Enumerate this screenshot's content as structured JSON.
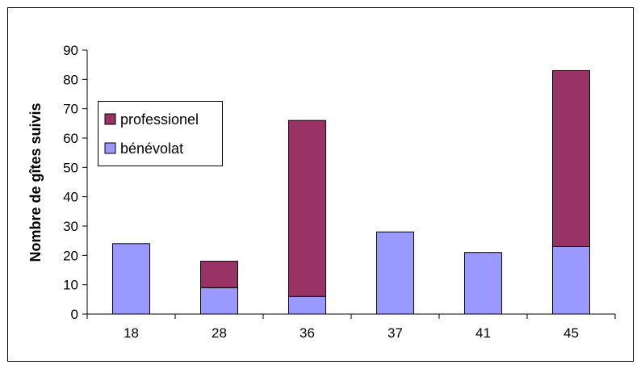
{
  "chart_data": {
    "type": "bar",
    "stacked": true,
    "categories": [
      "18",
      "28",
      "36",
      "37",
      "41",
      "45"
    ],
    "series": [
      {
        "name": "bénévolat",
        "values": [
          24,
          9,
          6,
          28,
          21,
          23
        ],
        "color": "#9999ff"
      },
      {
        "name": "professionel",
        "values": [
          0,
          9,
          60,
          0,
          0,
          60
        ],
        "color": "#993366"
      }
    ],
    "ylabel": "Nombre de gîtes suivis",
    "xlabel": "",
    "ylim": [
      0,
      90
    ],
    "yticks": [
      0,
      10,
      20,
      30,
      40,
      50,
      60,
      70,
      80,
      90
    ],
    "grid": false,
    "legend": {
      "position": "upper-left",
      "order": [
        "professionel",
        "bénévolat"
      ]
    }
  }
}
